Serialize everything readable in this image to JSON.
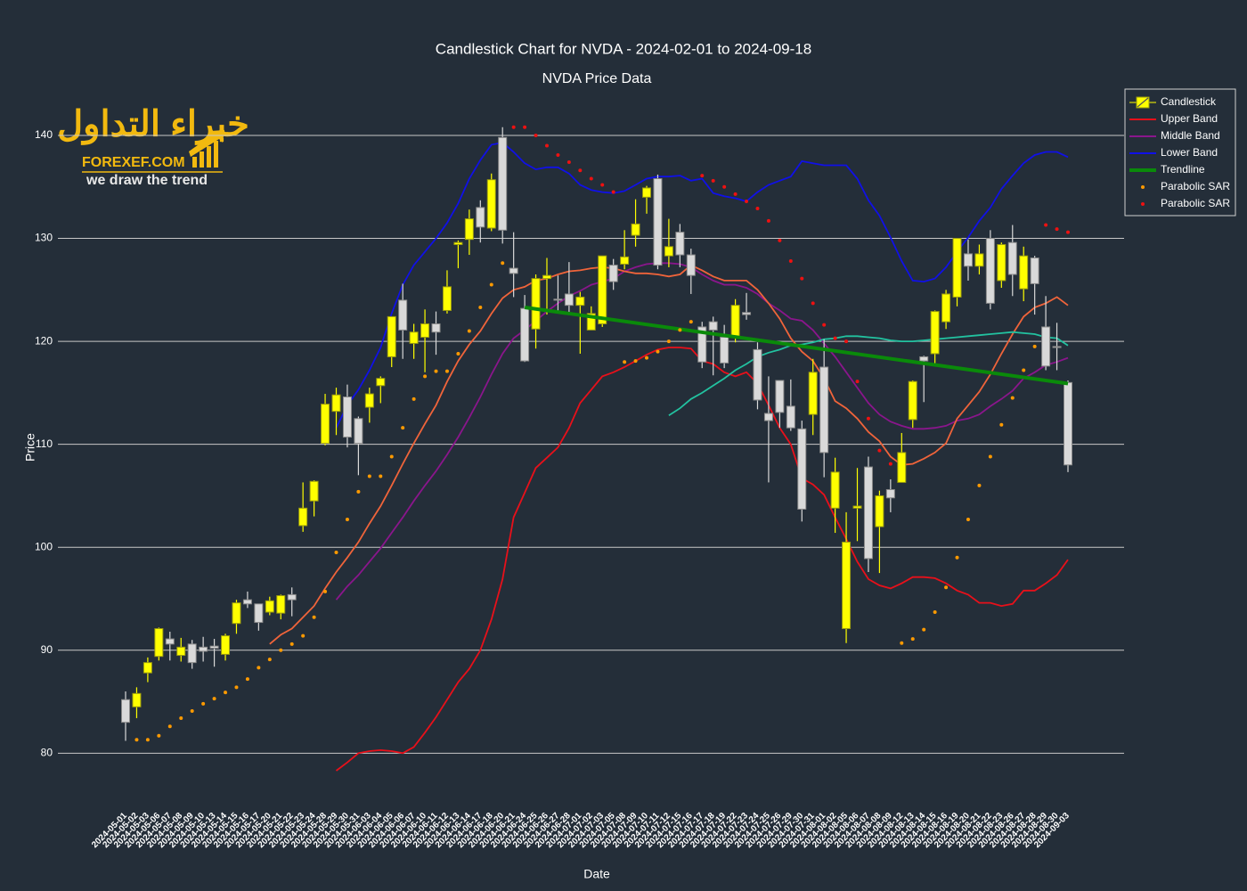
{
  "chart_data": {
    "type": "candlestick",
    "title": "Candlestick Chart for NVDA - 2024-02-01 to 2024-09-18",
    "subtitle": "NVDA Price Data",
    "x_label": "Date",
    "y_label": "Price",
    "candle_name": "Candlestick",
    "increasing_color": "#ffff00",
    "decreasing_color": "#d9d9d9",
    "categories": [
      "2024-05-01",
      "2024-05-02",
      "2024-05-03",
      "2024-05-06",
      "2024-05-07",
      "2024-05-08",
      "2024-05-09",
      "2024-05-10",
      "2024-05-13",
      "2024-05-14",
      "2024-05-15",
      "2024-05-16",
      "2024-05-17",
      "2024-05-20",
      "2024-05-21",
      "2024-05-22",
      "2024-05-23",
      "2024-05-24",
      "2024-05-28",
      "2024-05-29",
      "2024-05-30",
      "2024-05-31",
      "2024-06-03",
      "2024-06-04",
      "2024-06-05",
      "2024-06-06",
      "2024-06-07",
      "2024-06-10",
      "2024-06-11",
      "2024-06-12",
      "2024-06-13",
      "2024-06-14",
      "2024-06-17",
      "2024-06-18",
      "2024-06-20",
      "2024-06-21",
      "2024-06-24",
      "2024-06-25",
      "2024-06-26",
      "2024-06-27",
      "2024-06-28",
      "2024-07-01",
      "2024-07-02",
      "2024-07-03",
      "2024-07-05",
      "2024-07-08",
      "2024-07-09",
      "2024-07-10",
      "2024-07-11",
      "2024-07-12",
      "2024-07-15",
      "2024-07-16",
      "2024-07-17",
      "2024-07-18",
      "2024-07-19",
      "2024-07-22",
      "2024-07-23",
      "2024-07-24",
      "2024-07-25",
      "2024-07-26",
      "2024-07-29",
      "2024-07-30",
      "2024-07-31",
      "2024-08-01",
      "2024-08-02",
      "2024-08-05",
      "2024-08-06",
      "2024-08-07",
      "2024-08-08",
      "2024-08-09",
      "2024-08-12",
      "2024-08-13",
      "2024-08-14",
      "2024-08-15",
      "2024-08-16",
      "2024-08-19",
      "2024-08-20",
      "2024-08-21",
      "2024-08-22",
      "2024-08-23",
      "2024-08-26",
      "2024-08-27",
      "2024-08-28",
      "2024-08-29",
      "2024-08-30",
      "2024-09-03"
    ],
    "open": [
      85.2,
      84.5,
      87.8,
      89.4,
      91.1,
      89.5,
      90.6,
      90.3,
      90.4,
      89.6,
      92.6,
      94.9,
      94.5,
      93.7,
      93.6,
      95.4,
      102.1,
      104.5,
      110.1,
      113.2,
      114.6,
      112.5,
      113.6,
      115.7,
      118.5,
      124.0,
      119.8,
      120.4,
      121.7,
      123.0,
      129.4,
      129.9,
      133.0,
      131.0,
      139.8,
      127.1,
      123.2,
      121.2,
      126.1,
      124.1,
      124.6,
      123.5,
      121.1,
      121.7,
      127.4,
      127.5,
      130.3,
      134.0,
      135.8,
      128.3,
      130.6,
      128.4,
      121.4,
      121.9,
      120.4,
      120.4,
      122.8,
      119.2,
      113.0,
      116.2,
      113.7,
      111.5,
      112.9,
      117.5,
      103.8,
      92.1,
      103.8,
      107.8,
      102.0,
      105.6,
      106.3,
      112.4,
      118.5,
      118.8,
      121.9,
      124.3,
      128.5,
      127.3,
      130.0,
      125.9,
      129.6,
      125.1,
      128.1,
      121.4,
      119.5,
      116.0
    ],
    "high": [
      86.0,
      86.4,
      89.3,
      92.2,
      91.8,
      91.2,
      91.0,
      91.3,
      91.1,
      91.6,
      94.9,
      95.7,
      94.5,
      95.2,
      95.4,
      96.1,
      106.3,
      106.5,
      114.9,
      115.5,
      115.8,
      112.7,
      115.5,
      116.6,
      122.4,
      125.6,
      121.7,
      123.1,
      122.9,
      126.9,
      129.8,
      132.8,
      133.7,
      136.3,
      140.8,
      130.6,
      124.5,
      126.5,
      128.1,
      126.4,
      127.7,
      124.8,
      123.4,
      128.3,
      128.0,
      130.8,
      133.8,
      135.1,
      136.2,
      131.9,
      131.4,
      129.0,
      121.9,
      122.4,
      121.6,
      124.1,
      124.7,
      119.9,
      116.6,
      116.2,
      116.3,
      112.3,
      118.3,
      120.2,
      108.7,
      103.4,
      107.7,
      108.8,
      105.5,
      106.6,
      111.1,
      116.2,
      118.6,
      123.0,
      125.0,
      130.0,
      129.9,
      129.4,
      130.8,
      129.6,
      131.3,
      129.2,
      128.3,
      124.4,
      121.8,
      116.2
    ],
    "low": [
      81.2,
      83.4,
      86.9,
      89.0,
      89.0,
      88.9,
      88.2,
      88.9,
      88.4,
      89.0,
      91.6,
      94.1,
      91.9,
      93.4,
      93.0,
      93.3,
      101.5,
      103.0,
      109.9,
      110.9,
      109.7,
      107.0,
      112.1,
      114.0,
      117.5,
      118.3,
      118.3,
      117.0,
      118.7,
      122.7,
      127.1,
      128.4,
      129.6,
      130.7,
      129.5,
      124.3,
      118.0,
      119.3,
      122.6,
      122.9,
      122.6,
      118.8,
      121.1,
      121.4,
      125.0,
      127.0,
      129.2,
      132.4,
      127.0,
      127.2,
      127.2,
      124.6,
      117.4,
      116.7,
      117.4,
      119.9,
      122.1,
      113.4,
      106.3,
      111.6,
      111.3,
      102.5,
      110.9,
      106.8,
      101.4,
      90.7,
      100.6,
      97.6,
      97.5,
      103.4,
      106.3,
      111.6,
      114.1,
      117.7,
      121.2,
      123.4,
      125.9,
      126.5,
      123.1,
      125.2,
      124.4,
      123.9,
      122.6,
      117.2,
      117.2,
      107.3
    ],
    "close": [
      83.0,
      85.8,
      88.8,
      92.1,
      90.6,
      90.3,
      88.8,
      89.9,
      90.2,
      91.4,
      94.6,
      94.5,
      92.7,
      94.8,
      95.3,
      94.9,
      103.8,
      106.4,
      113.9,
      114.8,
      110.7,
      110.1,
      114.9,
      116.4,
      122.4,
      121.1,
      120.9,
      121.7,
      120.9,
      125.3,
      129.6,
      131.9,
      131.1,
      135.7,
      130.8,
      126.6,
      118.1,
      126.1,
      126.4,
      124.0,
      123.5,
      124.3,
      122.7,
      128.3,
      125.8,
      128.2,
      131.4,
      134.9,
      127.4,
      129.2,
      128.4,
      126.4,
      118.0,
      121.1,
      117.9,
      123.5,
      122.6,
      114.3,
      112.3,
      113.1,
      111.6,
      103.7,
      117.0,
      109.2,
      107.3,
      100.5,
      104.0,
      98.9,
      105.0,
      104.8,
      109.2,
      116.1,
      118.1,
      122.9,
      124.6,
      130.0,
      127.3,
      128.5,
      123.7,
      129.4,
      126.5,
      128.3,
      125.6,
      117.6,
      119.4,
      108.0
    ],
    "series": [
      {
        "name": "Upper Band",
        "color": "#e8101a",
        "values": [
          null,
          null,
          null,
          null,
          null,
          null,
          null,
          null,
          null,
          null,
          null,
          null,
          null,
          null,
          null,
          null,
          null,
          null,
          null,
          78.3,
          79.1,
          80.0,
          80.2,
          80.3,
          80.2,
          80.0,
          80.6,
          82.0,
          83.5,
          85.2,
          86.9,
          88.2,
          90.0,
          93.0,
          96.9,
          102.9,
          105.3,
          107.7,
          108.7,
          109.7,
          111.6,
          114.0,
          115.3,
          116.6,
          117.0,
          117.5,
          118.1,
          118.7,
          119.2,
          119.4,
          119.4,
          119.3,
          118.1,
          117.8,
          117.0,
          116.6,
          117.0,
          115.9,
          113.8,
          111.6,
          110.0,
          106.7,
          106.1,
          105.1,
          102.9,
          100.8,
          98.6,
          96.9,
          96.3,
          96.0,
          96.5,
          97.1,
          97.1,
          97.0,
          96.5,
          95.8,
          95.4,
          94.6,
          94.6,
          94.3,
          94.5,
          95.8,
          95.8,
          96.5,
          97.3,
          98.8
        ]
      },
      {
        "name": "Middle Band",
        "color": "#8a168c",
        "values": [
          null,
          null,
          null,
          null,
          null,
          null,
          null,
          null,
          null,
          null,
          null,
          null,
          null,
          null,
          null,
          null,
          null,
          null,
          null,
          94.9,
          96.2,
          97.3,
          98.6,
          99.9,
          101.4,
          102.9,
          104.5,
          106.0,
          107.4,
          109.0,
          110.7,
          112.6,
          114.6,
          116.8,
          118.8,
          120.3,
          121.1,
          122.0,
          122.9,
          123.7,
          124.4,
          124.9,
          125.5,
          125.8,
          126.1,
          126.8,
          127.2,
          127.5,
          127.6,
          127.6,
          127.5,
          127.2,
          126.5,
          125.9,
          125.5,
          125.5,
          125.2,
          124.6,
          123.7,
          123.0,
          122.2,
          122.0,
          121.1,
          119.8,
          118.5,
          117.0,
          115.5,
          114.0,
          112.9,
          112.2,
          111.8,
          111.5,
          111.5,
          111.6,
          111.8,
          112.3,
          112.5,
          112.9,
          113.7,
          114.4,
          115.2,
          116.4,
          117.0,
          117.7,
          118.0,
          118.4
        ]
      },
      {
        "name": "Lower Band",
        "color": "#1010e8",
        "values": [
          null,
          null,
          null,
          null,
          null,
          null,
          null,
          null,
          null,
          null,
          null,
          null,
          null,
          null,
          null,
          null,
          null,
          null,
          null,
          111.6,
          113.8,
          115.3,
          117.2,
          119.4,
          122.7,
          125.5,
          127.4,
          128.7,
          130.0,
          131.5,
          133.4,
          135.8,
          137.6,
          139.1,
          139.3,
          138.4,
          137.3,
          136.7,
          136.9,
          136.9,
          136.3,
          135.2,
          134.7,
          134.5,
          134.4,
          134.6,
          135.2,
          135.8,
          136.0,
          136.0,
          136.1,
          135.6,
          135.8,
          134.4,
          134.1,
          133.9,
          133.6,
          134.5,
          135.2,
          135.6,
          136.0,
          137.5,
          137.3,
          137.1,
          137.1,
          137.1,
          135.8,
          133.7,
          132.2,
          130.1,
          127.8,
          125.9,
          125.8,
          126.1,
          127.2,
          128.7,
          130.1,
          131.7,
          133.0,
          134.8,
          136.1,
          137.3,
          138.1,
          138.4,
          138.4,
          137.9
        ]
      },
      {
        "color": "#f0643a",
        "values": [
          null,
          null,
          null,
          null,
          null,
          null,
          null,
          null,
          null,
          null,
          null,
          null,
          null,
          90.6,
          91.5,
          92.1,
          93.2,
          94.3,
          96.0,
          97.6,
          99.0,
          100.5,
          102.3,
          104.0,
          106.0,
          108.1,
          110.1,
          112.0,
          113.8,
          116.1,
          118.1,
          119.7,
          121.0,
          122.7,
          124.2,
          125.0,
          125.3,
          125.9,
          126.1,
          126.5,
          126.8,
          126.9,
          127.1,
          127.2,
          127.1,
          126.8,
          126.6,
          126.6,
          126.5,
          126.3,
          126.5,
          127.4,
          126.9,
          126.3,
          125.9,
          125.9,
          125.9,
          125.0,
          123.7,
          122.2,
          120.3,
          119.0,
          118.1,
          116.4,
          114.2,
          113.5,
          112.5,
          111.2,
          110.3,
          108.8,
          108.0,
          108.1,
          108.6,
          109.2,
          110.1,
          112.5,
          113.8,
          115.1,
          116.8,
          118.8,
          120.7,
          122.4,
          123.3,
          123.7,
          124.3,
          123.5
        ]
      },
      {
        "color": "#22c2a0",
        "values": [
          null,
          null,
          null,
          null,
          null,
          null,
          null,
          null,
          null,
          null,
          null,
          null,
          null,
          null,
          null,
          null,
          null,
          null,
          null,
          null,
          null,
          null,
          null,
          null,
          null,
          null,
          null,
          null,
          null,
          null,
          null,
          null,
          null,
          null,
          null,
          null,
          null,
          null,
          null,
          null,
          null,
          null,
          null,
          null,
          null,
          null,
          null,
          null,
          null,
          112.8,
          113.5,
          114.4,
          115.0,
          115.7,
          116.4,
          117.2,
          117.8,
          118.5,
          118.9,
          119.2,
          119.6,
          119.7,
          119.9,
          120.2,
          120.3,
          120.5,
          120.5,
          120.4,
          120.3,
          120.1,
          120.0,
          120.0,
          120.1,
          120.2,
          120.3,
          120.4,
          120.5,
          120.6,
          120.7,
          120.8,
          120.9,
          120.8,
          120.7,
          120.4,
          120.3,
          119.6
        ]
      }
    ],
    "trendline": {
      "name": "Trendline",
      "color": "#0a8a0a",
      "x": [
        "2024-06-24",
        "2024-09-03"
      ],
      "values": [
        123.3,
        115.9
      ]
    },
    "markers": [
      {
        "name": "Parabolic SAR",
        "color": "#ff9a00",
        "values": [
          null,
          81.3,
          81.3,
          81.7,
          82.6,
          83.4,
          84.1,
          84.8,
          85.3,
          85.9,
          86.4,
          87.2,
          88.3,
          89.1,
          90.0,
          90.6,
          91.4,
          93.2,
          95.7,
          99.5,
          102.7,
          105.4,
          106.9,
          106.9,
          108.8,
          111.6,
          114.4,
          116.6,
          117.1,
          117.1,
          118.8,
          121.0,
          123.3,
          125.5,
          127.6,
          null,
          null,
          null,
          null,
          null,
          null,
          null,
          null,
          null,
          null,
          118.0,
          118.1,
          118.4,
          119.0,
          120.0,
          121.1,
          121.9,
          null,
          null,
          null,
          null,
          null,
          null,
          null,
          null,
          null,
          null,
          null,
          null,
          null,
          null,
          null,
          null,
          null,
          null,
          90.7,
          91.1,
          92.0,
          93.7,
          96.1,
          99.0,
          102.7,
          106.0,
          108.8,
          111.9,
          114.5,
          117.2,
          119.5,
          null,
          null,
          null
        ]
      },
      {
        "name": "Parabolic SAR",
        "color": "#ee1111",
        "values": [
          null,
          null,
          null,
          null,
          null,
          null,
          null,
          null,
          null,
          null,
          null,
          null,
          null,
          null,
          null,
          null,
          null,
          null,
          null,
          null,
          null,
          null,
          null,
          null,
          null,
          null,
          null,
          null,
          null,
          null,
          null,
          null,
          null,
          null,
          null,
          140.8,
          140.8,
          140.0,
          139.0,
          138.1,
          137.4,
          136.6,
          135.8,
          135.2,
          134.5,
          null,
          null,
          null,
          null,
          null,
          null,
          null,
          136.1,
          135.6,
          135.0,
          134.3,
          133.6,
          132.9,
          131.7,
          129.8,
          127.8,
          126.1,
          123.7,
          121.6,
          120.3,
          120.0,
          116.1,
          112.5,
          109.4,
          108.1,
          null,
          null,
          null,
          null,
          null,
          null,
          null,
          null,
          null,
          null,
          null,
          null,
          null,
          131.3,
          130.9,
          130.6
        ]
      }
    ],
    "ylim": [
      77,
      144.5
    ],
    "yticks": [
      80,
      90,
      100,
      110,
      120,
      130,
      140
    ],
    "grid": true,
    "legend": "top right"
  },
  "watermark": {
    "arabic": "خبراء التداول",
    "site": "FOREXEF.COM",
    "slogan": "we draw the trend"
  }
}
